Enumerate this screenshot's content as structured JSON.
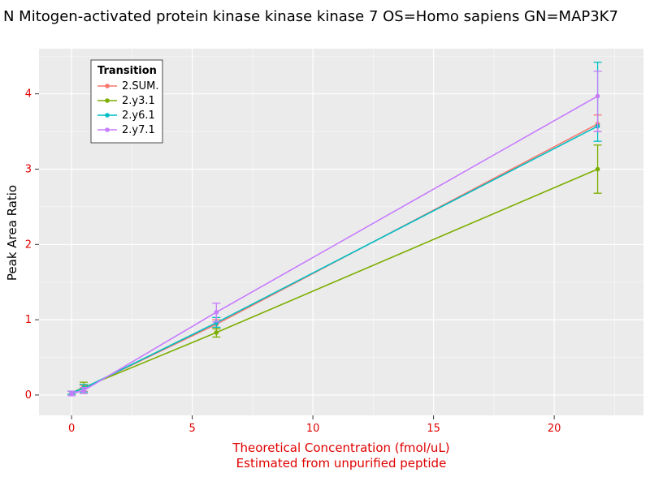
{
  "title": "N Mitogen-activated protein kinase kinase kinase 7 OS=Homo sapiens GN=MAP3K7",
  "style": {
    "panel_bg": "#EBEBEB",
    "grid_major": "#FFFFFF",
    "grid_minor": "#F7F7F7",
    "tick_color": "#333333",
    "axis_text_color": "#E00000",
    "legend_bg": "#FFFFFF",
    "legend_border": "#000000"
  },
  "chart_data": {
    "type": "line",
    "title": "N Mitogen-activated protein kinase kinase kinase 7 OS=Homo sapiens GN=MAP3K7",
    "xlabel": "Theoretical Concentration (fmol/uL)",
    "xlabel2": "Estimated from unpurified peptide",
    "ylabel": "Peak Area Ratio",
    "legend_title": "Transition",
    "legend_position": "top-left-inside",
    "grid": true,
    "x": [
      0,
      0.5,
      6,
      21.8
    ],
    "xticks": [
      0,
      5,
      10,
      15,
      20
    ],
    "yticks": [
      0,
      1,
      2,
      3,
      4
    ],
    "xlim": [
      -1.35,
      23.7
    ],
    "ylim": [
      -0.27,
      4.6
    ],
    "series": [
      {
        "name": "2.SUM.",
        "color": "#F8766D",
        "values": [
          0.03,
          0.09,
          0.94,
          3.6
        ],
        "err_lo": [
          0.01,
          0.05,
          0.88,
          3.5
        ],
        "err_hi": [
          0.05,
          0.13,
          1.0,
          3.72
        ]
      },
      {
        "name": "2.y3.1",
        "color": "#7CAE00",
        "values": [
          0.03,
          0.1,
          0.83,
          3.0
        ],
        "err_lo": [
          0.01,
          0.02,
          0.77,
          2.68
        ],
        "err_hi": [
          0.05,
          0.17,
          0.88,
          3.32
        ]
      },
      {
        "name": "2.y6.1",
        "color": "#00BFC4",
        "values": [
          0.03,
          0.09,
          0.96,
          3.57
        ],
        "err_lo": [
          0.01,
          0.04,
          0.9,
          3.37
        ],
        "err_hi": [
          0.05,
          0.14,
          1.03,
          4.42
        ]
      },
      {
        "name": "2.y7.1",
        "color": "#C77CFF",
        "values": [
          0.02,
          0.06,
          1.1,
          3.97
        ],
        "err_lo": [
          -0.01,
          0.02,
          0.97,
          3.5
        ],
        "err_hi": [
          0.05,
          0.1,
          1.22,
          4.3
        ]
      }
    ]
  }
}
